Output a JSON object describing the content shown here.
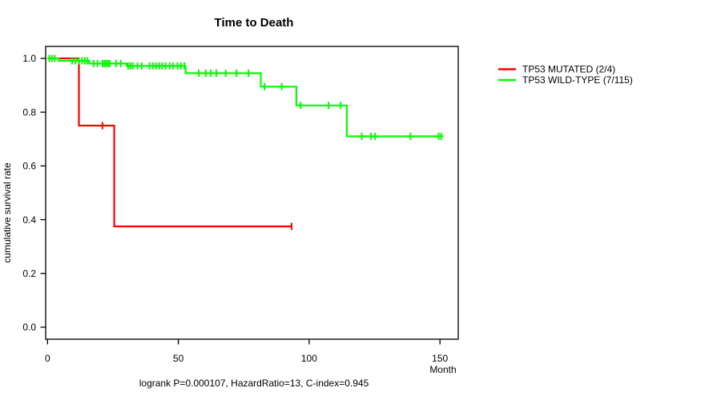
{
  "chart_data": {
    "type": "line",
    "subtype": "kaplan-meier-step",
    "title": "Time to Death",
    "ylabel": "cumulative survival rate",
    "xlabel": "Month",
    "x_unit_label": "Month",
    "annotation": "logrank P=0.000107, HazardRatio=13, C-index=0.945",
    "grid": false,
    "legend_position": "right-outside",
    "xlim": [
      -0.7,
      157
    ],
    "ylim": [
      -0.045,
      1.045
    ],
    "x_ticks": [
      {
        "value": 0,
        "label": "0"
      },
      {
        "value": 50,
        "label": "50"
      },
      {
        "value": 100,
        "label": "100"
      },
      {
        "value": 150,
        "label": "150"
      }
    ],
    "y_ticks": [
      {
        "value": 0.0,
        "label": "0.0"
      },
      {
        "value": 0.2,
        "label": "0.2"
      },
      {
        "value": 0.4,
        "label": "0.4"
      },
      {
        "value": 0.6,
        "label": "0.6"
      },
      {
        "value": 0.8,
        "label": "0.8"
      },
      {
        "value": 1.0,
        "label": "1.0"
      }
    ],
    "series": [
      {
        "id": "tp53-mutated",
        "name": "TP53 MUTATED (2/4)",
        "color": "#ff0000",
        "steps": [
          [
            0,
            1.0
          ],
          [
            12,
            1.0
          ],
          [
            12,
            0.75
          ],
          [
            25.5,
            0.75
          ],
          [
            25.5,
            0.375
          ],
          [
            93.3,
            0.375
          ]
        ],
        "censors": [
          [
            21,
            0.75
          ],
          [
            93.3,
            0.375
          ]
        ]
      },
      {
        "id": "tp53-wild-type",
        "name": "TP53 WILD-TYPE (7/115)",
        "color": "#00ff00",
        "steps": [
          [
            0,
            1.0
          ],
          [
            4.3,
            1.0
          ],
          [
            4.3,
            0.991
          ],
          [
            16,
            0.991
          ],
          [
            16,
            0.981
          ],
          [
            30.2,
            0.981
          ],
          [
            30.2,
            0.972
          ],
          [
            52.8,
            0.972
          ],
          [
            52.8,
            0.945
          ],
          [
            81.5,
            0.945
          ],
          [
            81.5,
            0.895
          ],
          [
            95.1,
            0.895
          ],
          [
            95.1,
            0.825
          ],
          [
            114.4,
            0.825
          ],
          [
            114.4,
            0.71
          ],
          [
            151.3,
            0.71
          ]
        ],
        "censors": [
          [
            0.7,
            1.0
          ],
          [
            1.7,
            1.0
          ],
          [
            2.8,
            1.0
          ],
          [
            9.4,
            0.991
          ],
          [
            10.7,
            0.991
          ],
          [
            12,
            0.991
          ],
          [
            13.2,
            0.991
          ],
          [
            14.3,
            0.991
          ],
          [
            15.3,
            0.991
          ],
          [
            17.6,
            0.981
          ],
          [
            19.1,
            0.981
          ],
          [
            21,
            0.981
          ],
          [
            21.7,
            0.981
          ],
          [
            22.4,
            0.981
          ],
          [
            23.1,
            0.981
          ],
          [
            23.8,
            0.981
          ],
          [
            26.2,
            0.981
          ],
          [
            28,
            0.981
          ],
          [
            30.8,
            0.972
          ],
          [
            31.7,
            0.972
          ],
          [
            32.6,
            0.972
          ],
          [
            34.4,
            0.972
          ],
          [
            36,
            0.972
          ],
          [
            39,
            0.972
          ],
          [
            40.3,
            0.972
          ],
          [
            41.5,
            0.972
          ],
          [
            42.7,
            0.972
          ],
          [
            43.8,
            0.972
          ],
          [
            45.1,
            0.972
          ],
          [
            46.7,
            0.972
          ],
          [
            48,
            0.972
          ],
          [
            49.7,
            0.972
          ],
          [
            51,
            0.972
          ],
          [
            52.3,
            0.972
          ],
          [
            57.8,
            0.945
          ],
          [
            60.5,
            0.945
          ],
          [
            62.4,
            0.945
          ],
          [
            64.5,
            0.945
          ],
          [
            68.1,
            0.945
          ],
          [
            72.2,
            0.945
          ],
          [
            76.8,
            0.945
          ],
          [
            82.9,
            0.895
          ],
          [
            89.5,
            0.895
          ],
          [
            96.7,
            0.825
          ],
          [
            107.4,
            0.825
          ],
          [
            112,
            0.825
          ],
          [
            120.1,
            0.71
          ],
          [
            123.6,
            0.71
          ],
          [
            125.2,
            0.71
          ],
          [
            138.7,
            0.71
          ],
          [
            149.5,
            0.71
          ],
          [
            150.5,
            0.71
          ]
        ]
      }
    ]
  }
}
